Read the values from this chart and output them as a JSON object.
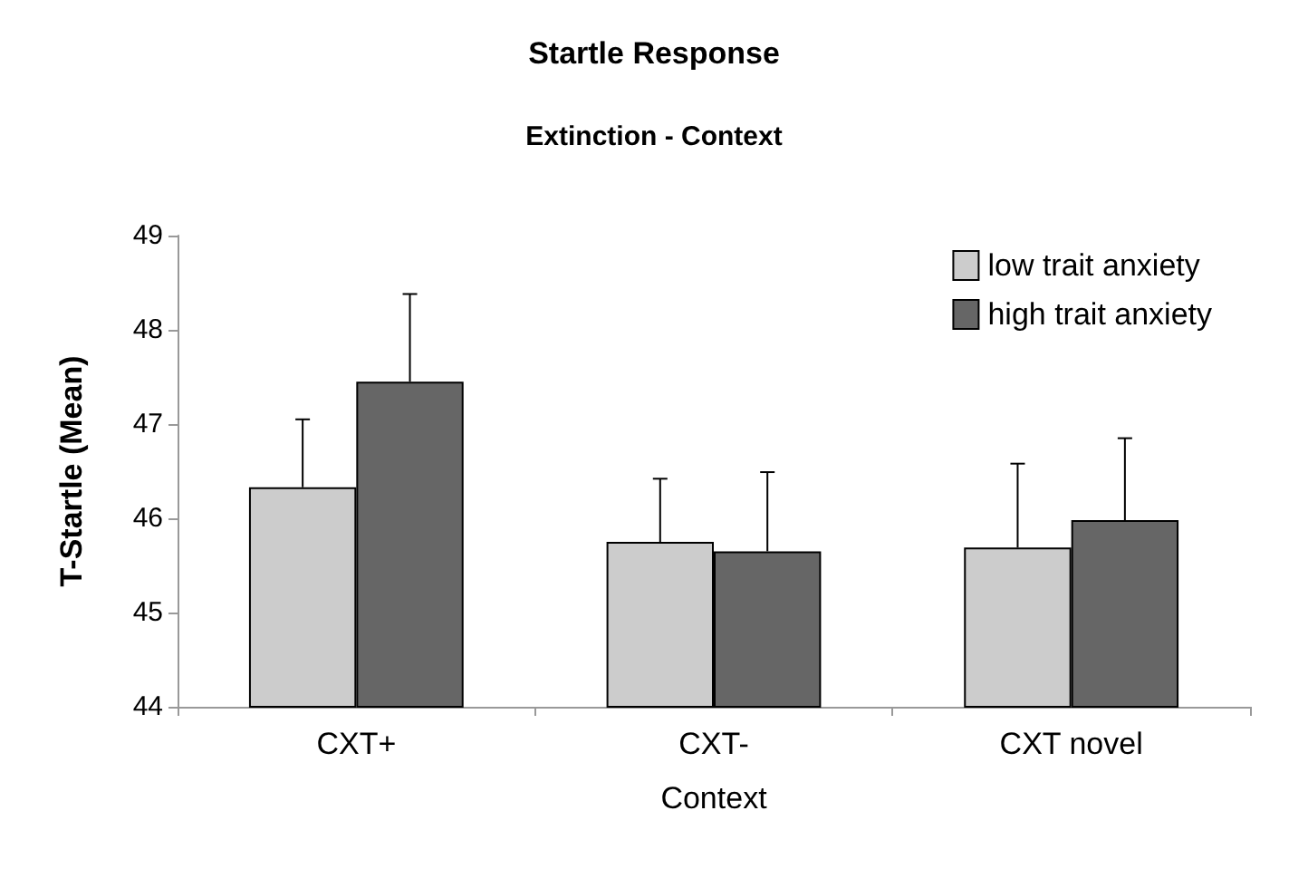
{
  "chart_data": {
    "type": "bar",
    "title": "Startle Response",
    "subtitle": "Extinction - Context",
    "xlabel": "Context",
    "ylabel": "T-Startle (Mean)",
    "categories": [
      "CXT+",
      "CXT-",
      "CXT novel"
    ],
    "series": [
      {
        "name": "low trait anxiety",
        "color": "#cccccc",
        "values": [
          46.33,
          45.75,
          45.69
        ],
        "errors": [
          [
            46.33,
            47.05
          ],
          [
            45.75,
            46.42
          ],
          [
            45.69,
            46.58
          ]
        ]
      },
      {
        "name": "high trait anxiety",
        "color": "#666666",
        "values": [
          47.45,
          45.65,
          45.98
        ],
        "errors": [
          [
            47.45,
            48.38
          ],
          [
            45.65,
            46.49
          ],
          [
            45.98,
            46.85
          ]
        ]
      }
    ],
    "ylim": [
      44,
      49
    ],
    "yticks": [
      44,
      45,
      46,
      47,
      48,
      49
    ],
    "grid": false,
    "legend": "top right"
  }
}
